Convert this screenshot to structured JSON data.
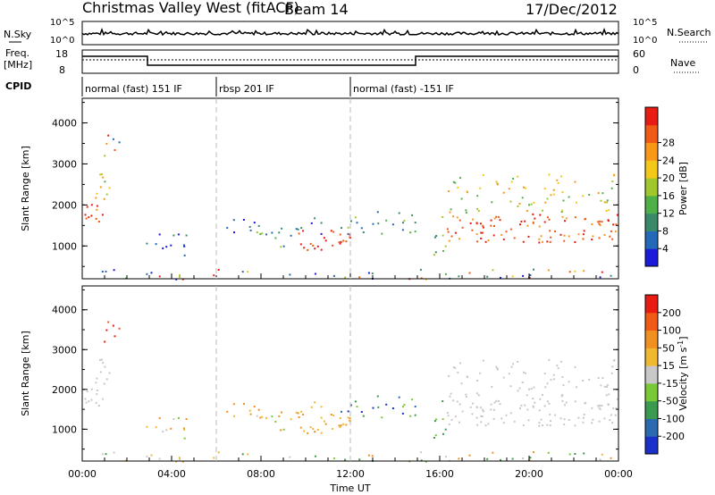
{
  "header": {
    "station": "Christmas Valley West (fitACF)",
    "beam": "Beam 14",
    "date": "17/Dec/2012"
  },
  "top_panels": {
    "nsky_label": "N.Sky",
    "nsky_ticks": [
      "10^5",
      "10^0"
    ],
    "nsearch_label": "N.Search",
    "nsearch_ticks": [
      "10^5",
      "10^0"
    ],
    "freq_label": "Freq.",
    "freq_unit": "[MHz]",
    "freq_ticks": [
      "18",
      "8"
    ],
    "nave_label": "Nave",
    "nave_ticks": [
      "60",
      "0"
    ],
    "cpid_label": "CPID"
  },
  "cpid_segments": [
    {
      "label": "normal (fast) 151 IF",
      "start_h": 0,
      "end_h": 6
    },
    {
      "label": "rbsp 201 IF",
      "start_h": 6,
      "end_h": 12
    },
    {
      "label": "normal (fast) -151 IF",
      "start_h": 12,
      "end_h": 24
    }
  ],
  "chart_data": [
    {
      "type": "heatmap",
      "name": "power",
      "ylabel": "Slant Range [km]",
      "yticks": [
        "1000",
        "2000",
        "3000",
        "4000"
      ],
      "ylim": [
        200,
        4600
      ],
      "colorbar": {
        "label": "Power [dB]",
        "ticks": [
          "4",
          "8",
          "12",
          "16",
          "20",
          "24",
          "28"
        ],
        "colors": [
          "#1a1ad8",
          "#2468b8",
          "#3a8a6a",
          "#50b048",
          "#a0c82c",
          "#f4c818",
          "#f89818",
          "#f05a14",
          "#e81c12"
        ]
      }
    },
    {
      "type": "heatmap",
      "name": "velocity",
      "ylabel": "Slant Range [km]",
      "yticks": [
        "1000",
        "2000",
        "3000",
        "4000"
      ],
      "ylim": [
        200,
        4600
      ],
      "xlabel": "Time UT",
      "xticks": [
        "00:00",
        "04:00",
        "08:00",
        "12:00",
        "16:00",
        "20:00",
        "00:00"
      ],
      "colorbar": {
        "label": "Velocity [m s",
        "label_sup": "-1",
        "label_end": "]",
        "ticks": [
          "200",
          "100",
          "50",
          "15",
          "-15",
          "-50",
          "-100",
          "-200"
        ],
        "colors": [
          "#1a30c8",
          "#2a6ab0",
          "#3a9a50",
          "#78c838",
          "#c8c8c8",
          "#f0b830",
          "#f09020",
          "#f05a14",
          "#e81c12"
        ]
      }
    }
  ]
}
